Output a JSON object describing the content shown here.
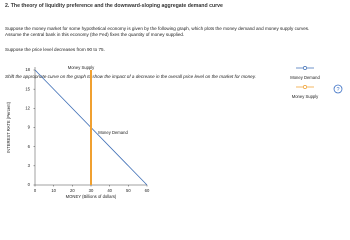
{
  "page": {
    "title": "2. The theory of liquidity preference and the downward-sloping aggregate demand curve",
    "paragraph_1": "Suppose the money market for some hypothetical economy is given by the following graph, which plots the money demand and money supply curves. Assume the central bank in this economy (the Fed) fixes the quantity of money supplied.",
    "paragraph_2": "Suppose the price level decreases from 90 to 75.",
    "instruction": "Shift the appropriate curve on the graph to show the impact of a decrease in the overall price level on the market for money.",
    "help_icon": "?"
  },
  "chart_data": {
    "type": "line",
    "xlabel": "MONEY (Billions of dollars)",
    "ylabel": "INTEREST RATE (Percent)",
    "xlim": [
      0,
      60
    ],
    "ylim": [
      0,
      18
    ],
    "xticks": [
      0,
      10,
      20,
      30,
      40,
      50,
      60
    ],
    "yticks": [
      0,
      3,
      6,
      9,
      12,
      15,
      18
    ],
    "series": [
      {
        "name": "Money Demand",
        "color": "#3f6fb6",
        "x": [
          0,
          60
        ],
        "values": [
          18,
          0
        ]
      },
      {
        "name": "Money Supply",
        "color": "#f0a030",
        "x": [
          30,
          30
        ],
        "values": [
          0,
          18
        ]
      }
    ]
  }
}
